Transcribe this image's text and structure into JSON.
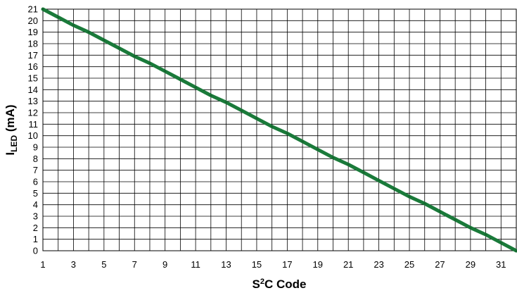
{
  "chart_data": {
    "type": "line",
    "title": "",
    "xlabel": {
      "part1": "S",
      "superscript": "2",
      "part2": "C Code"
    },
    "ylabel": {
      "main": "I",
      "subscript": "LED",
      "unit": " (mA)"
    },
    "xlim": [
      1,
      32
    ],
    "ylim": [
      0,
      21
    ],
    "x_ticks": [
      1,
      3,
      5,
      7,
      9,
      11,
      13,
      15,
      17,
      19,
      21,
      23,
      25,
      27,
      29,
      31
    ],
    "y_ticks": [
      0,
      1,
      2,
      3,
      4,
      5,
      6,
      7,
      8,
      9,
      10,
      11,
      12,
      13,
      14,
      15,
      16,
      17,
      18,
      19,
      20,
      21
    ],
    "grid": true,
    "legend": "none",
    "series": [
      {
        "color": "#1a7a3a",
        "x": [
          1,
          2,
          3,
          4,
          5,
          6,
          7,
          8,
          9,
          10,
          11,
          12,
          13,
          14,
          15,
          16,
          17,
          18,
          19,
          20,
          21,
          22,
          23,
          24,
          25,
          26,
          27,
          28,
          29,
          30,
          31,
          32
        ],
        "y": [
          21.0,
          20.3,
          19.6,
          19.0,
          18.3,
          17.6,
          16.9,
          16.3,
          15.6,
          14.9,
          14.2,
          13.5,
          12.9,
          12.2,
          11.5,
          10.8,
          10.2,
          9.5,
          8.8,
          8.1,
          7.5,
          6.8,
          6.1,
          5.4,
          4.7,
          4.1,
          3.4,
          2.7,
          2.0,
          1.4,
          0.7,
          0.0
        ]
      }
    ]
  }
}
